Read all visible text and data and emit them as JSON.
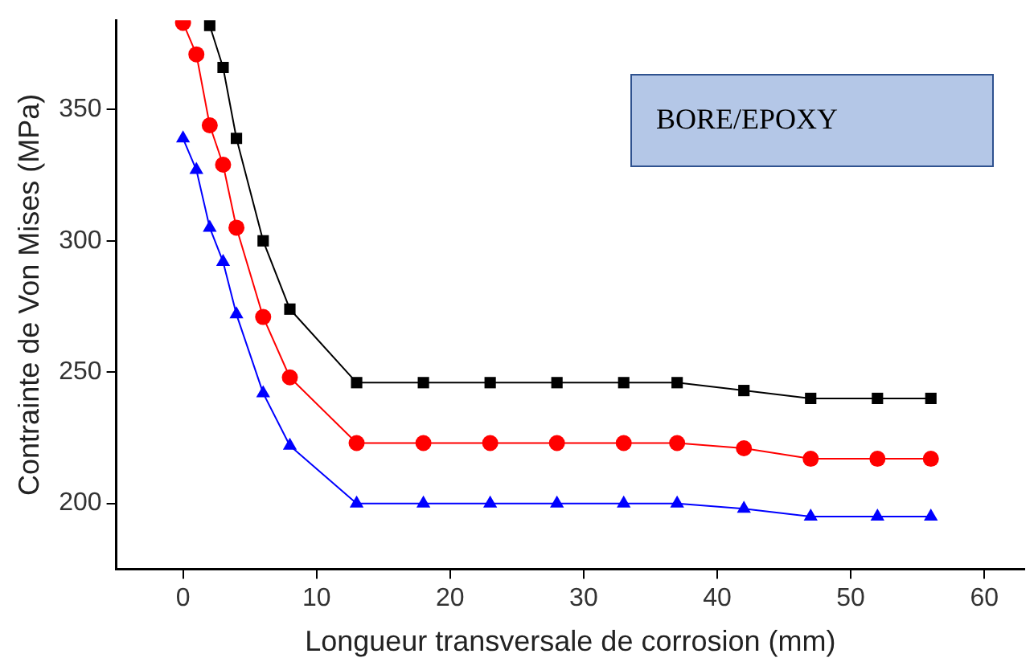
{
  "chart_data": {
    "type": "line",
    "xlabel": "Longueur transversale de corrosion (mm)",
    "ylabel": "Contrainte de Von Mises (MPa)",
    "annotations": [
      "BORE/EPOXY"
    ],
    "xlim": [
      -5,
      63
    ],
    "xticks": [
      0,
      10,
      20,
      30,
      40,
      50,
      60
    ],
    "ylim": [
      175,
      384
    ],
    "yticks": [
      200,
      250,
      300,
      350
    ],
    "grid": false,
    "legend": false,
    "series": [
      {
        "color": "#000000",
        "marker": "square",
        "x": [
          2,
          3,
          4,
          6,
          8,
          13,
          18,
          23,
          28,
          33,
          37,
          42,
          47,
          52,
          56
        ],
        "values": [
          382,
          366,
          339,
          300,
          274,
          246,
          246,
          246,
          246,
          246,
          246,
          243,
          240,
          240,
          240
        ]
      },
      {
        "color": "#ff0000",
        "marker": "circle",
        "x": [
          0,
          1,
          2,
          3,
          4,
          6,
          8,
          13,
          18,
          23,
          28,
          33,
          37,
          42,
          47,
          52,
          56
        ],
        "values": [
          383,
          371,
          344,
          329,
          305,
          271,
          248,
          223,
          223,
          223,
          223,
          223,
          223,
          221,
          217,
          217,
          217
        ]
      },
      {
        "color": "#0000ff",
        "marker": "triangle",
        "x": [
          0,
          1,
          2,
          3,
          4,
          6,
          8,
          13,
          18,
          23,
          28,
          33,
          37,
          42,
          47,
          52,
          56
        ],
        "values": [
          339,
          327,
          305,
          292,
          272,
          242,
          222,
          200,
          200,
          200,
          200,
          200,
          200,
          198,
          195,
          195,
          195
        ]
      }
    ]
  }
}
